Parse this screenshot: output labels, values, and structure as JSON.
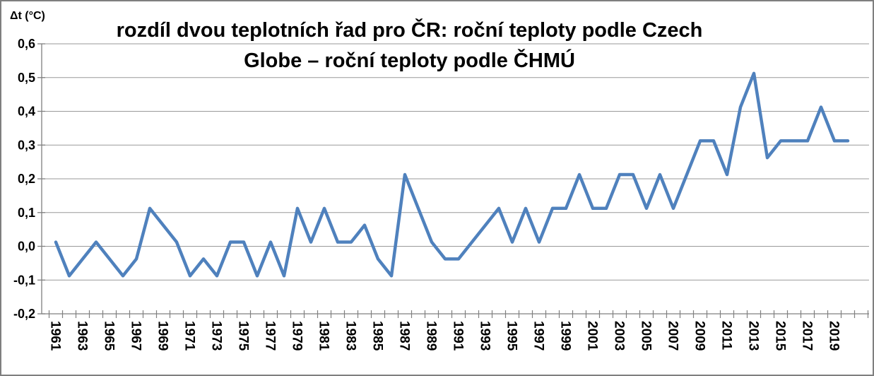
{
  "chart_data": {
    "type": "line",
    "title": "rozdíl dvou teplotních řad pro ČR: roční teploty podle Czech Globe – roční teploty podle ČHMÚ",
    "title_line1": "rozdíl dvou teplotních řad pro ČR: roční teploty podle Czech",
    "title_line2": "Globe – roční teploty podle ČHMÚ",
    "ylabel": "Δt (°C)",
    "legend": "none",
    "grid": true,
    "ylim": [
      -0.2,
      0.6
    ],
    "ytick_step": 0.1,
    "ytick_labels": [
      "0,6",
      "0,5",
      "0,4",
      "0,3",
      "0,2",
      "0,1",
      "0,0",
      "-0,1",
      "-0,2"
    ],
    "xtick_labels": [
      "1961",
      "1963",
      "1965",
      "1967",
      "1969",
      "1971",
      "1973",
      "1975",
      "1977",
      "1979",
      "1981",
      "1983",
      "1985",
      "1987",
      "1989",
      "1991",
      "1993",
      "1995",
      "1997",
      "1999",
      "2001",
      "2003",
      "2005",
      "2007",
      "2009",
      "2011",
      "2013",
      "2015",
      "2017",
      "2019"
    ],
    "x": [
      1961,
      1962,
      1963,
      1964,
      1965,
      1966,
      1967,
      1968,
      1969,
      1970,
      1971,
      1972,
      1973,
      1974,
      1975,
      1976,
      1977,
      1978,
      1979,
      1980,
      1981,
      1982,
      1983,
      1984,
      1985,
      1986,
      1987,
      1988,
      1989,
      1990,
      1991,
      1992,
      1993,
      1994,
      1995,
      1996,
      1997,
      1998,
      1999,
      2000,
      2001,
      2002,
      2003,
      2004,
      2005,
      2006,
      2007,
      2008,
      2009,
      2010,
      2011,
      2012,
      2013,
      2014,
      2015,
      2016,
      2017,
      2018,
      2019,
      2020
    ],
    "values": [
      0.0125,
      -0.0875,
      -0.0375,
      0.0125,
      -0.0375,
      -0.0875,
      -0.0375,
      0.1125,
      0.0625,
      0.0125,
      -0.0875,
      -0.0375,
      -0.0875,
      0.0125,
      0.0125,
      -0.0875,
      0.0125,
      -0.0875,
      0.1125,
      0.0125,
      0.1125,
      0.0125,
      0.0125,
      0.0625,
      -0.0375,
      -0.0875,
      0.2125,
      0.1125,
      0.0125,
      -0.0375,
      -0.0375,
      0.0125,
      0.0625,
      0.1125,
      0.0125,
      0.1125,
      0.0125,
      0.1125,
      0.1125,
      0.2125,
      0.1125,
      0.1125,
      0.2125,
      0.2125,
      0.1125,
      0.2125,
      0.1125,
      0.2125,
      0.3125,
      0.3125,
      0.2125,
      0.4125,
      0.5125,
      0.2625,
      0.3125,
      0.3125,
      0.3125,
      0.4125,
      0.3125,
      0.3125
    ],
    "line_color": "#4F81BD",
    "axis_color": "#808080",
    "gridline_color": "#9a9a9a",
    "text_color": "#000000"
  }
}
